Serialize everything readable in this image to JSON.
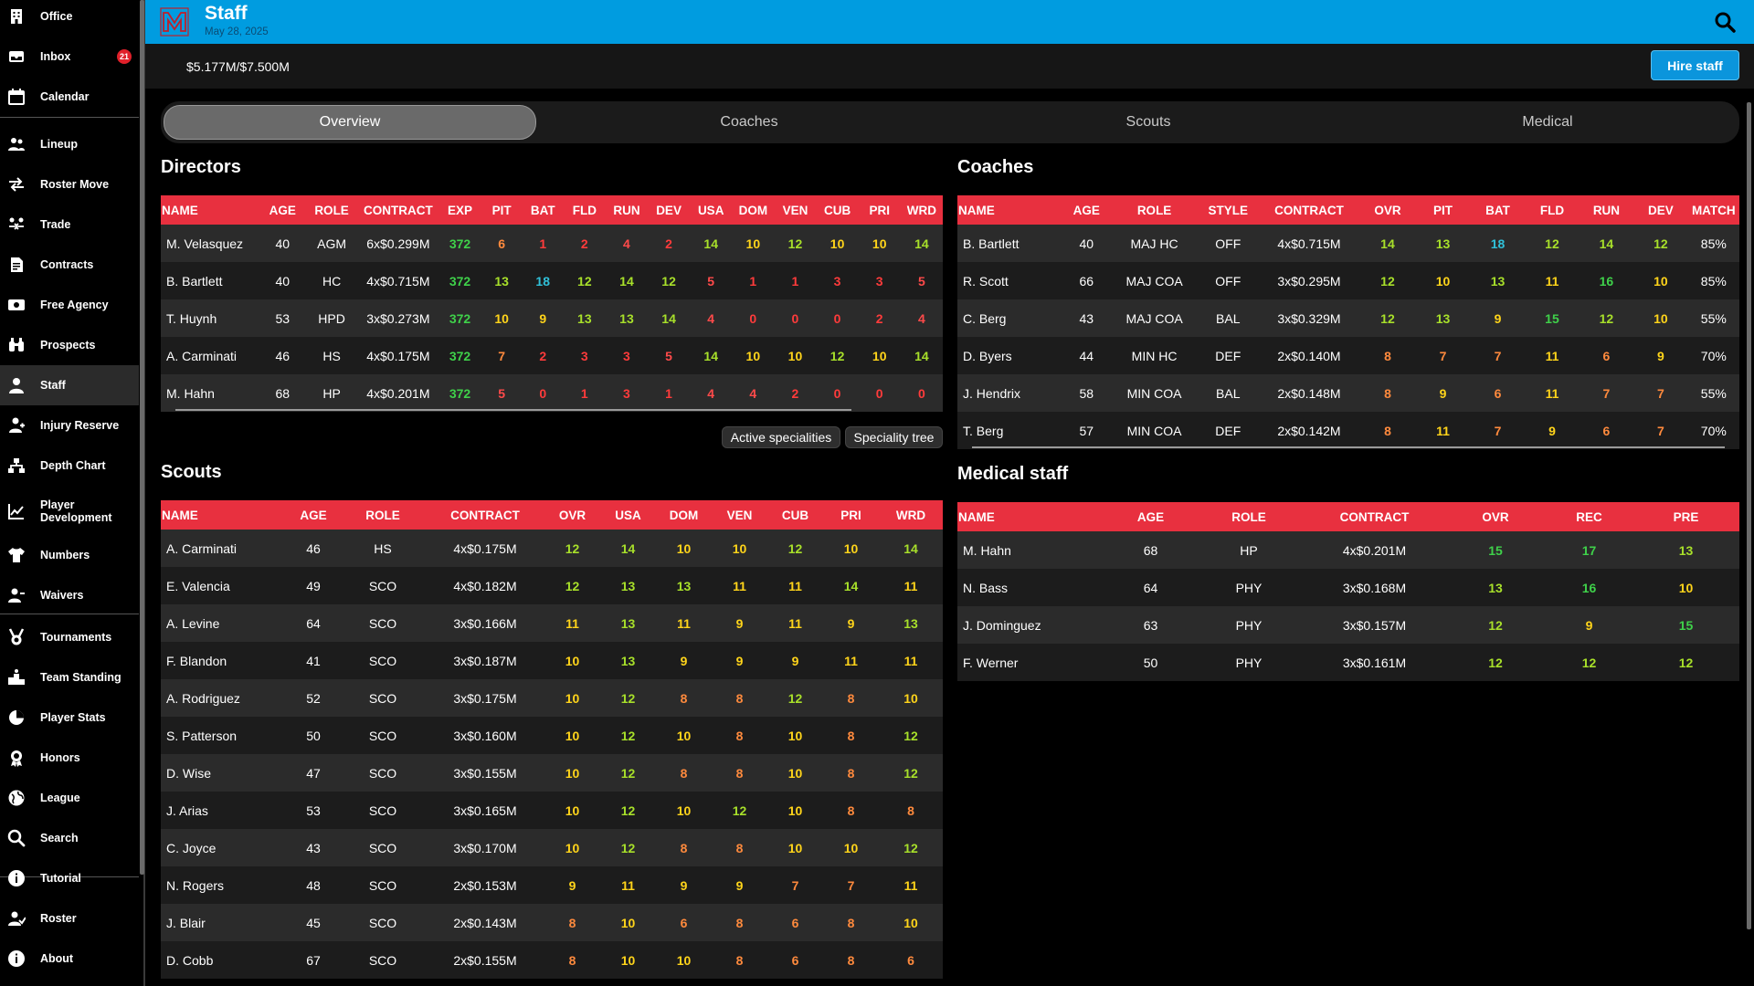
{
  "sidebar": {
    "items": [
      {
        "label": "Office",
        "icon": "office-building-icon"
      },
      {
        "label": "Inbox",
        "icon": "inbox-icon",
        "badge": "21"
      },
      {
        "label": "Calendar",
        "icon": "calendar-icon"
      },
      {
        "label": "Lineup",
        "icon": "lineup-icon"
      },
      {
        "label": "Roster Move",
        "icon": "roster-move-icon"
      },
      {
        "label": "Trade",
        "icon": "trade-icon"
      },
      {
        "label": "Contracts",
        "icon": "contracts-icon"
      },
      {
        "label": "Free Agency",
        "icon": "free-agency-icon"
      },
      {
        "label": "Prospects",
        "icon": "prospects-binoculars-icon"
      },
      {
        "label": "Staff",
        "icon": "staff-icon"
      },
      {
        "label": "Injury Reserve",
        "icon": "injury-reserve-icon"
      },
      {
        "label": "Depth Chart",
        "icon": "depth-chart-icon"
      },
      {
        "label": "Player\nDevelopment",
        "icon": "player-development-chart-icon"
      },
      {
        "label": "Numbers",
        "icon": "numbers-jersey-icon"
      },
      {
        "label": "Waivers",
        "icon": "waivers-icon"
      },
      {
        "label": "Tournaments",
        "icon": "tournaments-medal-icon"
      },
      {
        "label": "Team Standing",
        "icon": "team-standing-podium-icon"
      },
      {
        "label": "Player Stats",
        "icon": "player-stats-pie-icon"
      },
      {
        "label": "Honors",
        "icon": "honors-award-icon"
      },
      {
        "label": "League",
        "icon": "league-globe-icon"
      },
      {
        "label": "Search",
        "icon": "search-icon"
      },
      {
        "label": "Tutorial",
        "icon": "tutorial-info-icon"
      },
      {
        "label": "Roster",
        "icon": "roster-icon"
      },
      {
        "label": "About",
        "icon": "about-info-icon"
      }
    ]
  },
  "header": {
    "title": "Staff",
    "date": "May 28, 2025"
  },
  "finance": {
    "budget": "$5.177M/$7.500M"
  },
  "actions": {
    "hire_label": "Hire staff"
  },
  "tabs": [
    "Overview",
    "Coaches",
    "Scouts",
    "Medical"
  ],
  "directors": {
    "title": "Directors",
    "headers": [
      "NAME",
      "AGE",
      "ROLE",
      "CONTRACT",
      "EXP",
      "PIT",
      "BAT",
      "FLD",
      "RUN",
      "DEV",
      "USA",
      "DOM",
      "VEN",
      "CUB",
      "PRI",
      "WRD"
    ],
    "rows": [
      [
        "M. Velasquez",
        "40",
        "AGM",
        "6x$0.299M",
        "372",
        "6",
        "1",
        "2",
        "4",
        "2",
        "14",
        "10",
        "12",
        "10",
        "10",
        "14"
      ],
      [
        "B. Bartlett",
        "40",
        "HC",
        "4x$0.715M",
        "372",
        "13",
        "18",
        "12",
        "14",
        "12",
        "5",
        "1",
        "1",
        "3",
        "3",
        "5"
      ],
      [
        "T. Huynh",
        "53",
        "HPD",
        "3x$0.273M",
        "372",
        "10",
        "9",
        "13",
        "13",
        "14",
        "4",
        "0",
        "0",
        "0",
        "2",
        "4"
      ],
      [
        "A. Carminati",
        "46",
        "HS",
        "4x$0.175M",
        "372",
        "7",
        "2",
        "3",
        "3",
        "5",
        "14",
        "10",
        "10",
        "12",
        "10",
        "14"
      ],
      [
        "M. Hahn",
        "68",
        "HP",
        "4x$0.201M",
        "372",
        "5",
        "0",
        "1",
        "3",
        "1",
        "4",
        "4",
        "2",
        "0",
        "0",
        "0"
      ]
    ]
  },
  "specialities": {
    "active": "Active specialities",
    "tree": "Speciality tree"
  },
  "coaches": {
    "title": "Coaches",
    "headers": [
      "NAME",
      "AGE",
      "ROLE",
      "STYLE",
      "CONTRACT",
      "OVR",
      "PIT",
      "BAT",
      "FLD",
      "RUN",
      "DEV",
      "MATCH"
    ],
    "rows": [
      [
        "B. Bartlett",
        "40",
        "MAJ HC",
        "OFF",
        "4x$0.715M",
        "14",
        "13",
        "18",
        "12",
        "14",
        "12",
        "85%"
      ],
      [
        "R. Scott",
        "66",
        "MAJ COA",
        "OFF",
        "3x$0.295M",
        "12",
        "10",
        "13",
        "11",
        "16",
        "10",
        "85%"
      ],
      [
        "C. Berg",
        "43",
        "MAJ COA",
        "BAL",
        "3x$0.329M",
        "12",
        "13",
        "9",
        "15",
        "12",
        "10",
        "55%"
      ],
      [
        "D. Byers",
        "44",
        "MIN HC",
        "DEF",
        "2x$0.140M",
        "8",
        "7",
        "7",
        "11",
        "6",
        "9",
        "70%"
      ],
      [
        "J. Hendrix",
        "58",
        "MIN COA",
        "BAL",
        "2x$0.148M",
        "8",
        "9",
        "6",
        "11",
        "7",
        "7",
        "55%"
      ],
      [
        "T. Berg",
        "57",
        "MIN COA",
        "DEF",
        "2x$0.142M",
        "8",
        "11",
        "7",
        "9",
        "6",
        "7",
        "70%"
      ]
    ]
  },
  "scouts": {
    "title": "Scouts",
    "headers": [
      "NAME",
      "AGE",
      "ROLE",
      "CONTRACT",
      "OVR",
      "USA",
      "DOM",
      "VEN",
      "CUB",
      "PRI",
      "WRD"
    ],
    "rows": [
      [
        "A. Carminati",
        "46",
        "HS",
        "4x$0.175M",
        "12",
        "14",
        "10",
        "10",
        "12",
        "10",
        "14"
      ],
      [
        "E. Valencia",
        "49",
        "SCO",
        "4x$0.182M",
        "12",
        "13",
        "13",
        "11",
        "11",
        "14",
        "11"
      ],
      [
        "A. Levine",
        "64",
        "SCO",
        "3x$0.166M",
        "11",
        "13",
        "11",
        "9",
        "11",
        "9",
        "13"
      ],
      [
        "F. Blandon",
        "41",
        "SCO",
        "3x$0.187M",
        "10",
        "13",
        "9",
        "9",
        "9",
        "11",
        "11"
      ],
      [
        "A. Rodriguez",
        "52",
        "SCO",
        "3x$0.175M",
        "10",
        "12",
        "8",
        "8",
        "12",
        "8",
        "10"
      ],
      [
        "S. Patterson",
        "50",
        "SCO",
        "3x$0.160M",
        "10",
        "12",
        "10",
        "8",
        "10",
        "8",
        "12"
      ],
      [
        "D. Wise",
        "47",
        "SCO",
        "3x$0.155M",
        "10",
        "12",
        "8",
        "8",
        "10",
        "8",
        "12"
      ],
      [
        "J. Arias",
        "53",
        "SCO",
        "3x$0.165M",
        "10",
        "12",
        "10",
        "12",
        "10",
        "8",
        "8"
      ],
      [
        "C. Joyce",
        "43",
        "SCO",
        "3x$0.170M",
        "10",
        "12",
        "8",
        "8",
        "10",
        "10",
        "12"
      ],
      [
        "N. Rogers",
        "48",
        "SCO",
        "2x$0.153M",
        "9",
        "11",
        "9",
        "9",
        "7",
        "7",
        "11"
      ],
      [
        "J. Blair",
        "45",
        "SCO",
        "2x$0.143M",
        "8",
        "10",
        "6",
        "8",
        "6",
        "8",
        "10"
      ],
      [
        "D. Cobb",
        "67",
        "SCO",
        "2x$0.155M",
        "8",
        "10",
        "10",
        "8",
        "6",
        "8",
        "6"
      ]
    ]
  },
  "medical": {
    "title": "Medical staff",
    "headers": [
      "NAME",
      "AGE",
      "ROLE",
      "CONTRACT",
      "OVR",
      "REC",
      "PRE"
    ],
    "rows": [
      [
        "M. Hahn",
        "68",
        "HP",
        "4x$0.201M",
        "15",
        "17",
        "13"
      ],
      [
        "N. Bass",
        "64",
        "PHY",
        "3x$0.168M",
        "13",
        "16",
        "10"
      ],
      [
        "J. Dominguez",
        "63",
        "PHY",
        "3x$0.157M",
        "12",
        "9",
        "15"
      ],
      [
        "F. Werner",
        "50",
        "PHY",
        "3x$0.161M",
        "12",
        "12",
        "12"
      ]
    ]
  },
  "colors": {
    "topbar": "#009ce0",
    "header_row": "#e8303f",
    "exp_green": "#3fd14a",
    "rating_scale": {
      "0-3": "#ff3b3b",
      "4-5": "#ff4a4a",
      "6-8": "#ff8a3d",
      "9-11": "#ffd41a",
      "12-14": "#a8e02a",
      "15-17": "#3fd14a",
      "18+": "#30c0d8"
    }
  }
}
